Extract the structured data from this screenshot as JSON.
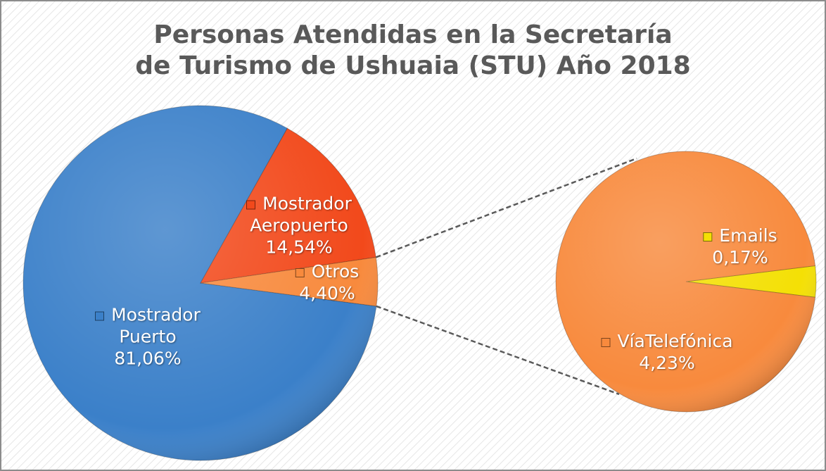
{
  "chart_data": [
    {
      "type": "pie",
      "title": "Personas Atendidas en la Secretaría de Turismo de Ushuaia (STU) Año 2018",
      "categories": [
        "Mostrador Puerto",
        "Mostrador Aeropuerto",
        "Otros"
      ],
      "values": [
        81.06,
        14.54,
        4.4
      ],
      "value_labels": [
        "81,06%",
        "14,54%",
        "4,40%"
      ],
      "colors": [
        "#3b80c9",
        "#f2491b",
        "#f88a3d"
      ]
    },
    {
      "type": "pie",
      "categories": [
        "Emails",
        "VíaTelefónica"
      ],
      "values": [
        0.17,
        4.23
      ],
      "value_labels": [
        "0,17%",
        "4,23%"
      ],
      "colors": [
        "#f4e005",
        "#f88a3d"
      ]
    }
  ]
}
